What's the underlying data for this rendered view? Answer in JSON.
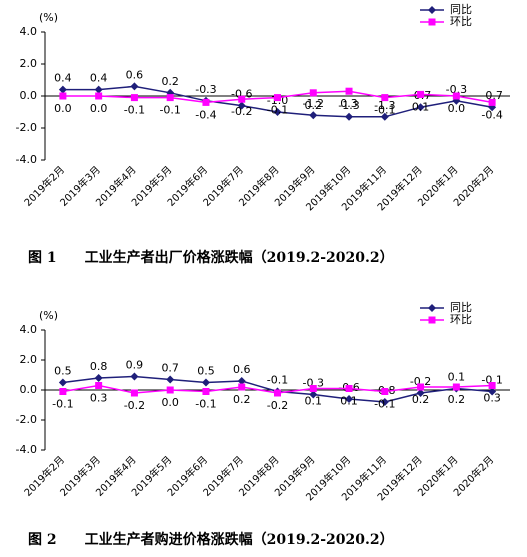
{
  "chart_data": [
    {
      "type": "line",
      "title": "图 1　　工业生产者出厂价格涨跌幅（2019.2-2020.2）",
      "y_unit": "(%)",
      "categories": [
        "2019年2月",
        "2019年3月",
        "2019年4月",
        "2019年5月",
        "2019年6月",
        "2019年7月",
        "2019年8月",
        "2019年9月",
        "2019年10月",
        "2019年11月",
        "2019年12月",
        "2020年1月",
        "2020年2月"
      ],
      "ylim": [
        -4,
        4
      ],
      "yticks": [
        {
          "value": 4,
          "label": "4.0"
        },
        {
          "value": 2,
          "label": "2.0"
        },
        {
          "value": 0,
          "label": "0.0"
        },
        {
          "value": -2,
          "label": "-2.0"
        },
        {
          "value": -4,
          "label": "-4.0"
        }
      ],
      "legend": "upper right",
      "series": [
        {
          "name": "同比",
          "color": "#1f1f7a",
          "marker": "diamond",
          "values": [
            0.4,
            0.4,
            0.6,
            0.2,
            -0.3,
            -0.6,
            -1.0,
            -1.2,
            -1.3,
            -1.3,
            -0.7,
            -0.3,
            -0.7
          ],
          "value_labels": [
            "0.4",
            "0.4",
            "0.6",
            "0.2",
            "-0.3",
            "-0.6",
            "-1.0",
            "-1.2",
            "-1.3",
            "-1.3",
            "-0.7",
            "-0.3",
            "-0.7"
          ]
        },
        {
          "name": "环比",
          "color": "#ff00ff",
          "marker": "square",
          "values": [
            0.0,
            0.0,
            -0.1,
            -0.1,
            -0.4,
            -0.2,
            -0.1,
            0.2,
            0.3,
            -0.1,
            0.1,
            0.0,
            -0.4
          ],
          "value_labels": [
            "0.0",
            "0.0",
            "-0.1",
            "-0.1",
            "-0.4",
            "-0.2",
            "-0.1",
            "0.2",
            "0.3",
            "-0.1",
            "0.1",
            "0.0",
            "-0.4"
          ]
        }
      ]
    },
    {
      "type": "line",
      "title": "图 2　　工业生产者购进价格涨跌幅（2019.2-2020.2）",
      "y_unit": "(%)",
      "categories": [
        "2019年2月",
        "2019年3月",
        "2019年4月",
        "2019年5月",
        "2019年6月",
        "2019年7月",
        "2019年8月",
        "2019年9月",
        "2019年10月",
        "2019年11月",
        "2019年12月",
        "2020年1月",
        "2020年2月"
      ],
      "ylim": [
        -4,
        4
      ],
      "yticks": [
        {
          "value": 4,
          "label": "4.0"
        },
        {
          "value": 2,
          "label": "2.0"
        },
        {
          "value": 0,
          "label": "0.0"
        },
        {
          "value": -2,
          "label": "-2.0"
        },
        {
          "value": -4,
          "label": "-4.0"
        }
      ],
      "legend": "upper right",
      "series": [
        {
          "name": "同比",
          "color": "#1f1f7a",
          "marker": "diamond",
          "values": [
            0.5,
            0.8,
            0.9,
            0.7,
            0.5,
            0.6,
            -0.1,
            -0.3,
            -0.6,
            -0.8,
            -0.2,
            0.1,
            -0.1
          ],
          "value_labels": [
            "0.5",
            "0.8",
            "0.9",
            "0.7",
            "0.5",
            "0.6",
            "-0.1",
            "-0.3",
            "-0.6",
            "-0.8",
            "-0.2",
            "0.1",
            "-0.1"
          ]
        },
        {
          "name": "环比",
          "color": "#ff00ff",
          "marker": "square",
          "values": [
            -0.1,
            0.3,
            -0.2,
            0.0,
            -0.1,
            0.2,
            -0.2,
            0.1,
            0.1,
            -0.1,
            0.2,
            0.2,
            0.3
          ],
          "value_labels": [
            "-0.1",
            "0.3",
            "-0.2",
            "0.0",
            "-0.1",
            "0.2",
            "-0.2",
            "0.1",
            "0.1",
            "-0.1",
            "0.2",
            "0.2",
            "0.3"
          ]
        }
      ]
    }
  ]
}
